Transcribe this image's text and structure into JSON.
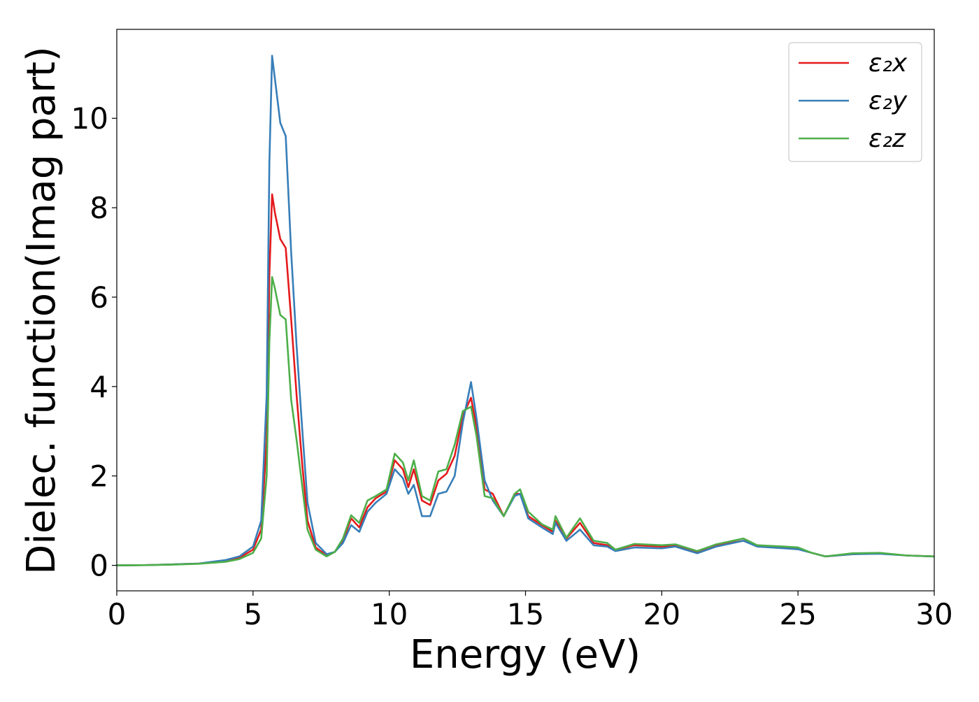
{
  "chart_data": {
    "type": "line",
    "xlabel": "Energy (eV)",
    "ylabel": "Dielec. function(Imag part)",
    "xlim": [
      0,
      30
    ],
    "ylim": [
      -0.57,
      11.99
    ],
    "xticks": [
      0,
      5,
      10,
      15,
      20,
      25,
      30
    ],
    "yticks": [
      0,
      2,
      4,
      6,
      8,
      10
    ],
    "legend": "upper right",
    "x": [
      0,
      1,
      2,
      3,
      4,
      4.5,
      5,
      5.3,
      5.5,
      5.6,
      5.7,
      5.8,
      6.0,
      6.2,
      6.4,
      6.6,
      6.8,
      7.0,
      7.3,
      7.7,
      8.0,
      8.3,
      8.6,
      8.9,
      9.2,
      9.5,
      9.9,
      10.2,
      10.5,
      10.7,
      10.9,
      11.2,
      11.5,
      11.8,
      12.1,
      12.4,
      12.7,
      13.0,
      13.2,
      13.5,
      13.8,
      14.2,
      14.6,
      14.8,
      15.1,
      15.6,
      16.0,
      16.1,
      16.5,
      17.0,
      17.5,
      18.0,
      18.3,
      19,
      20,
      20.5,
      21.3,
      22,
      23,
      23.5,
      24.5,
      25,
      25.5,
      26,
      27,
      28,
      29,
      30
    ],
    "series": [
      {
        "name": "ε₂x",
        "color": "#e41a1c",
        "values": [
          0,
          0.005,
          0.02,
          0.04,
          0.1,
          0.17,
          0.35,
          0.8,
          2.8,
          6.5,
          8.3,
          7.9,
          7.3,
          7.1,
          5.5,
          3.8,
          2.3,
          1.0,
          0.4,
          0.22,
          0.3,
          0.55,
          1.05,
          0.85,
          1.3,
          1.5,
          1.65,
          2.35,
          2.15,
          1.75,
          2.15,
          1.45,
          1.35,
          1.9,
          2.05,
          2.45,
          3.35,
          3.75,
          3.1,
          1.7,
          1.6,
          1.1,
          1.6,
          1.6,
          1.1,
          0.9,
          0.75,
          1.0,
          0.6,
          0.95,
          0.5,
          0.45,
          0.35,
          0.45,
          0.42,
          0.45,
          0.3,
          0.45,
          0.55,
          0.45,
          0.4,
          0.38,
          0.28,
          0.2,
          0.25,
          0.27,
          0.22,
          0.2
        ]
      },
      {
        "name": "ε₂y",
        "color": "#377eb8",
        "values": [
          0,
          0.005,
          0.02,
          0.04,
          0.12,
          0.2,
          0.42,
          1.0,
          3.8,
          9.0,
          11.4,
          10.9,
          9.9,
          9.6,
          7.0,
          4.9,
          3.1,
          1.4,
          0.5,
          0.25,
          0.3,
          0.5,
          0.9,
          0.75,
          1.2,
          1.4,
          1.6,
          2.15,
          1.95,
          1.6,
          1.8,
          1.1,
          1.1,
          1.6,
          1.65,
          2.0,
          3.2,
          4.1,
          3.3,
          1.9,
          1.45,
          1.1,
          1.55,
          1.6,
          1.05,
          0.85,
          0.7,
          0.95,
          0.55,
          0.8,
          0.45,
          0.42,
          0.32,
          0.4,
          0.38,
          0.42,
          0.27,
          0.42,
          0.55,
          0.42,
          0.38,
          0.36,
          0.28,
          0.2,
          0.25,
          0.26,
          0.22,
          0.2
        ]
      },
      {
        "name": "ε₂z",
        "color": "#4daf4a",
        "values": [
          0,
          0.004,
          0.015,
          0.035,
          0.08,
          0.14,
          0.28,
          0.6,
          2.0,
          5.0,
          6.45,
          6.2,
          5.6,
          5.5,
          3.7,
          2.8,
          1.8,
          0.8,
          0.35,
          0.2,
          0.3,
          0.6,
          1.12,
          0.95,
          1.45,
          1.55,
          1.7,
          2.5,
          2.3,
          1.9,
          2.35,
          1.55,
          1.45,
          2.1,
          2.15,
          2.7,
          3.45,
          3.55,
          2.9,
          1.55,
          1.5,
          1.1,
          1.6,
          1.7,
          1.2,
          0.92,
          0.8,
          1.1,
          0.62,
          1.05,
          0.55,
          0.5,
          0.35,
          0.48,
          0.45,
          0.47,
          0.32,
          0.47,
          0.6,
          0.45,
          0.42,
          0.4,
          0.28,
          0.2,
          0.27,
          0.28,
          0.22,
          0.2
        ]
      }
    ]
  }
}
